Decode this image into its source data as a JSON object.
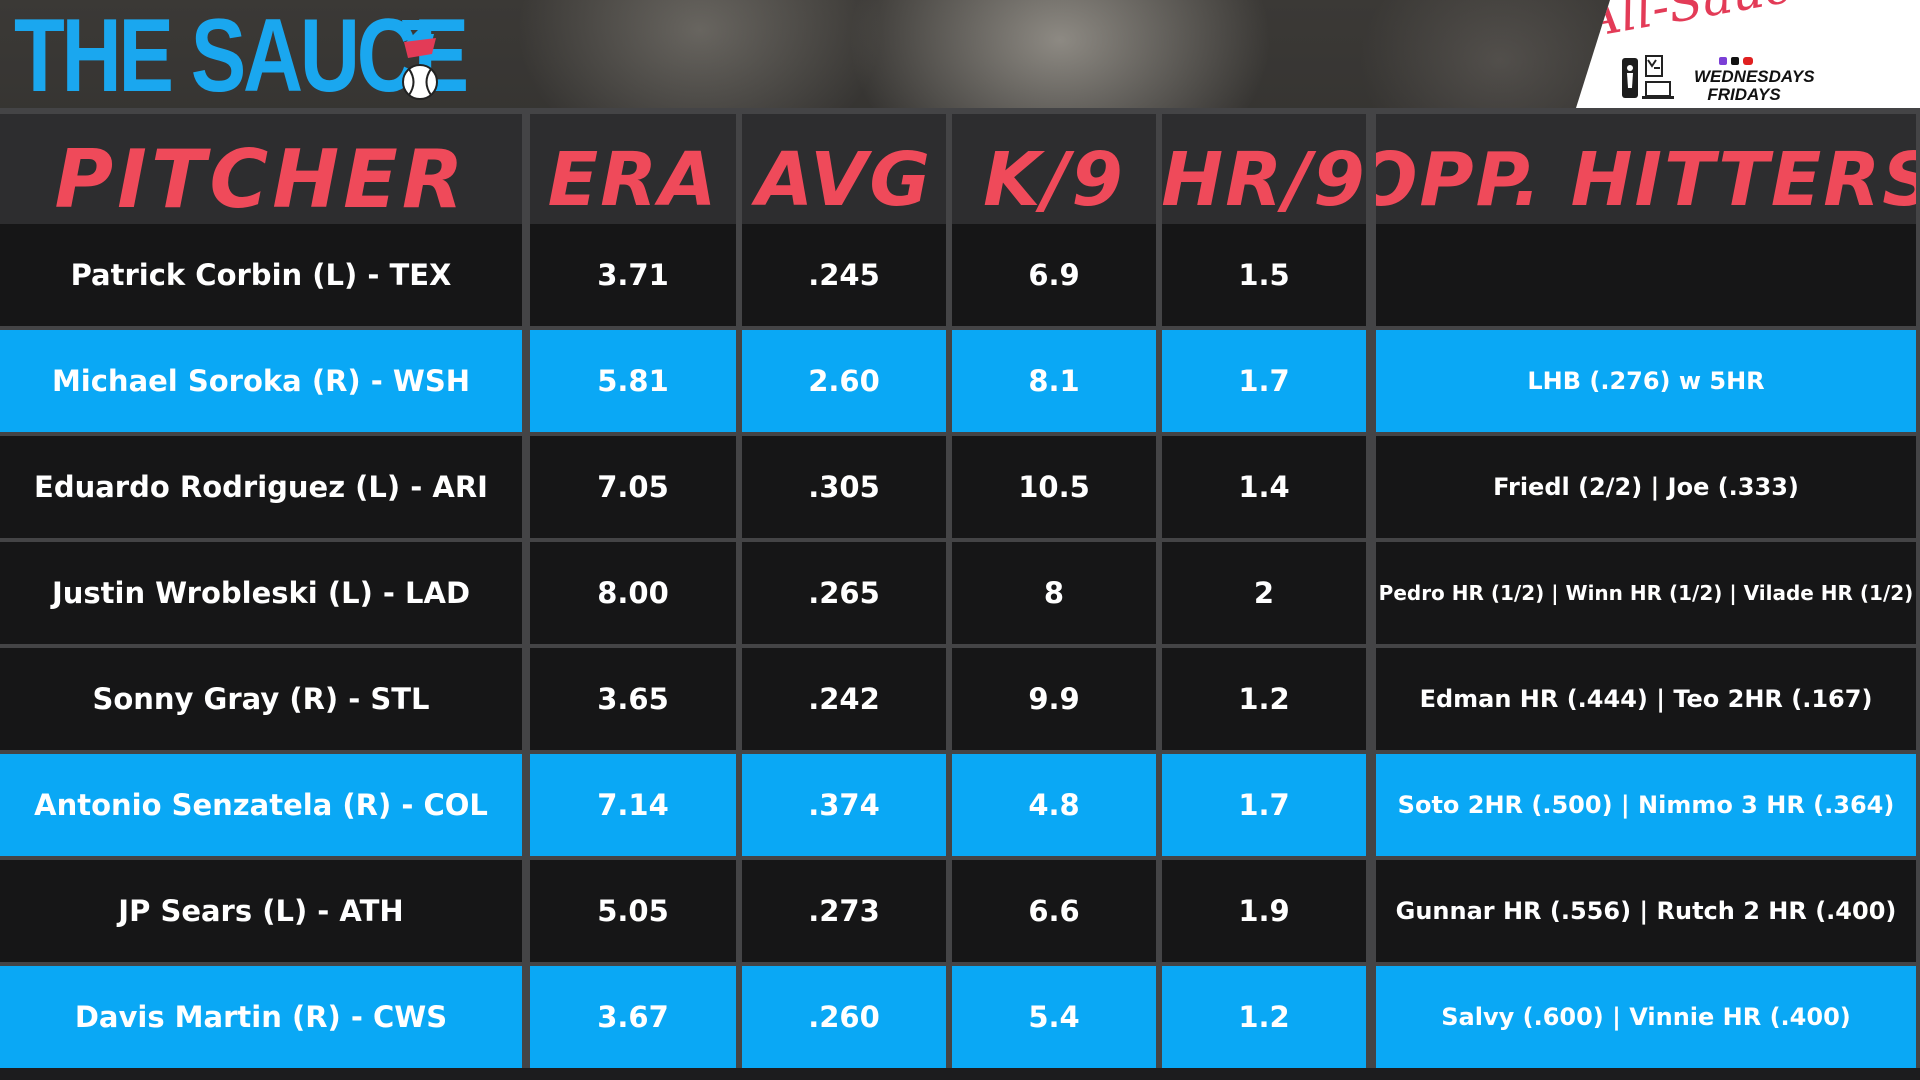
{
  "header": {
    "brand_title": "THE SAUCE",
    "badge_script": "All-Sauce Team",
    "badge_day_1": "WEDNESDAYS",
    "badge_day_2": "FRIDAYS"
  },
  "table": {
    "columns": [
      "PITCHER",
      "ERA",
      "AVG",
      "K/9",
      "HR/9",
      "OPP. HITTERS"
    ],
    "rows": [
      {
        "pitcher": "Patrick Corbin (L) - TEX",
        "era": "3.71",
        "avg": ".245",
        "k9": "6.9",
        "hr9": "1.5",
        "opp": "",
        "style": "dark"
      },
      {
        "pitcher": "Michael Soroka (R) - WSH",
        "era": "5.81",
        "avg": "2.60",
        "k9": "8.1",
        "hr9": "1.7",
        "opp": "LHB (.276) w 5HR",
        "style": "blue"
      },
      {
        "pitcher": "Eduardo Rodriguez (L) - ARI",
        "era": "7.05",
        "avg": ".305",
        "k9": "10.5",
        "hr9": "1.4",
        "opp": "Friedl (2/2) | Joe (.333)",
        "style": "dark"
      },
      {
        "pitcher": "Justin Wrobleski (L) - LAD",
        "era": "8.00",
        "avg": ".265",
        "k9": "8",
        "hr9": "2",
        "opp": "Pedro HR (1/2) | Winn HR (1/2) | Vilade HR (1/2)",
        "style": "dark"
      },
      {
        "pitcher": "Sonny Gray (R) - STL",
        "era": "3.65",
        "avg": ".242",
        "k9": "9.9",
        "hr9": "1.2",
        "opp": "Edman HR (.444) | Teo 2HR (.167)",
        "style": "dark"
      },
      {
        "pitcher": "Antonio Senzatela (R) - COL",
        "era": "7.14",
        "avg": ".374",
        "k9": "4.8",
        "hr9": "1.7",
        "opp": "Soto 2HR (.500) | Nimmo 3 HR (.364)",
        "style": "blue"
      },
      {
        "pitcher": "JP Sears (L) - ATH",
        "era": "5.05",
        "avg": ".273",
        "k9": "6.6",
        "hr9": "1.9",
        "opp": "Gunnar HR (.556) | Rutch 2 HR (.400)",
        "style": "dark"
      },
      {
        "pitcher": "Davis Martin (R) - CWS",
        "era": "3.67",
        "avg": ".260",
        "k9": "5.4",
        "hr9": "1.2",
        "opp": "Salvy (.600) | Vinnie HR (.400)",
        "style": "blue"
      }
    ]
  },
  "colors": {
    "accent_blue": "#0aa8f5",
    "brand_blue": "#1aa7ef",
    "header_red": "#ef4a5a",
    "dark_row": "#121214"
  },
  "icons": [
    "baseball-icon",
    "nba-logo-icon",
    "trophy-icon",
    "laptop-icon"
  ]
}
